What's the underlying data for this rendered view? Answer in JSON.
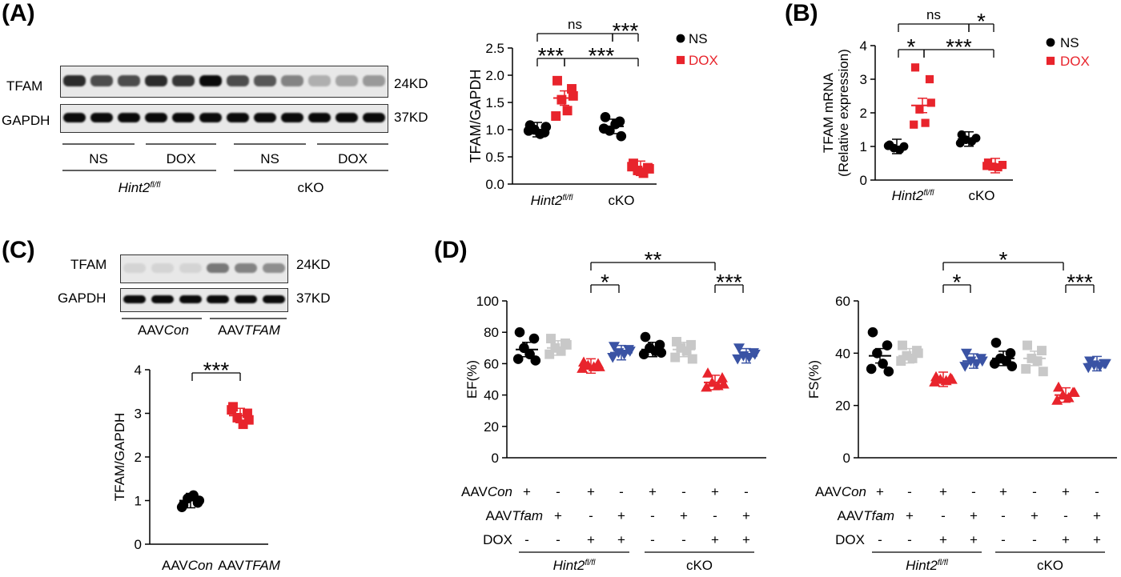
{
  "panels": {
    "A": {
      "label": "(A)",
      "blot": {
        "rows": [
          {
            "name": "TFAM",
            "size": "24KD",
            "intensities": [
              0.85,
              0.7,
              0.7,
              0.85,
              0.8,
              1.0,
              0.7,
              0.65,
              0.45,
              0.25,
              0.3,
              0.35
            ]
          },
          {
            "name": "GAPDH",
            "size": "37KD",
            "intensities": [
              1.0,
              1.0,
              1.0,
              1.0,
              1.0,
              1.0,
              1.0,
              1.0,
              1.0,
              1.0,
              1.0,
              1.0
            ]
          }
        ],
        "groups": [
          "NS",
          "DOX",
          "NS",
          "DOX"
        ],
        "genotypes": [
          "Hint2fl/fl",
          "cKO"
        ]
      }
    },
    "B": {
      "label": "(B)"
    },
    "C": {
      "label": "(C)",
      "blot": {
        "rows": [
          {
            "name": "TFAM",
            "size": "24KD",
            "intensities": [
              0.08,
              0.08,
              0.08,
              0.5,
              0.45,
              0.4
            ]
          },
          {
            "name": "GAPDH",
            "size": "37KD",
            "intensities": [
              1.0,
              1.0,
              1.0,
              1.0,
              1.0,
              1.0
            ]
          }
        ],
        "groups": [
          "AAVCon",
          "AAVTFAM"
        ]
      }
    },
    "D": {
      "label": "(D)",
      "rows": {
        "aavcon_label": "AAVCon",
        "aavtfam_label": "AAVTfam",
        "dox_label": "DOX",
        "aavcon": [
          "+",
          "-",
          "+",
          "-",
          "+",
          "-",
          "+",
          "-"
        ],
        "aavtfam": [
          "-",
          "+",
          "-",
          "+",
          "-",
          "+",
          "-",
          "+"
        ],
        "dox": [
          "-",
          "-",
          "+",
          "+",
          "-",
          "-",
          "+",
          "+"
        ],
        "genotypes": [
          "Hint2fl/fl",
          "cKO"
        ]
      }
    }
  },
  "colors": {
    "ns": "#000000",
    "dox": "#e8242c",
    "gray": "#c8c8c8",
    "blue": "#3a53a4"
  },
  "chart_data": [
    {
      "id": "A-scatter",
      "type": "scatter",
      "ylabel": "TFAM/GAPDH",
      "ylim": [
        0,
        2.5
      ],
      "yticks": [
        "0.0",
        "0.5",
        "1.0",
        "1.5",
        "2.0",
        "2.5"
      ],
      "categories": [
        "Hint2fl/fl",
        "cKO"
      ],
      "legend": [
        "NS",
        "DOX"
      ],
      "legend_position": "top-right",
      "series": [
        {
          "name": "NS",
          "values": [
            [
              1.08,
              0.95,
              1.0,
              0.92,
              0.98,
              1.05
            ],
            [
              1.23,
              1.15,
              0.98,
              1.1,
              1.02,
              0.88
            ]
          ],
          "means": [
            1.0,
            1.06
          ]
        },
        {
          "name": "DOX",
          "values": [
            [
              1.9,
              1.75,
              1.55,
              1.35,
              1.25,
              1.62
            ],
            [
              0.38,
              0.3,
              0.25,
              0.2,
              0.32,
              0.28
            ]
          ],
          "means": [
            1.58,
            0.29
          ]
        }
      ],
      "significance": [
        {
          "text": "ns",
          "level": 2
        },
        {
          "text": "***",
          "level": 2
        },
        {
          "text": "***",
          "level": 1
        },
        {
          "text": "***",
          "level": 1
        }
      ]
    },
    {
      "id": "B-scatter",
      "type": "scatter",
      "ylabel": "TFAM mRNA",
      "ylabel2": "(Relative expression)",
      "ylim": [
        0,
        4
      ],
      "yticks": [
        "0",
        "1",
        "2",
        "3",
        "4"
      ],
      "categories": [
        "Hint2fl/fl",
        "cKO"
      ],
      "legend": [
        "NS",
        "DOX"
      ],
      "legend_position": "top-right",
      "series": [
        {
          "name": "NS",
          "values": [
            [
              1.05,
              1.0,
              0.95,
              0.9,
              1.02
            ],
            [
              1.35,
              1.25,
              1.2,
              1.15,
              1.1
            ]
          ],
          "means": [
            1.0,
            1.22
          ]
        },
        {
          "name": "DOX",
          "values": [
            [
              3.35,
              3.0,
              2.1,
              1.7,
              1.65,
              2.3
            ],
            [
              0.52,
              0.45,
              0.4,
              0.38,
              0.42
            ]
          ],
          "means": [
            2.22,
            0.43
          ]
        }
      ],
      "significance": [
        {
          "text": "ns",
          "level": 2
        },
        {
          "text": "*",
          "level": 2
        },
        {
          "text": "*",
          "level": 1
        },
        {
          "text": "***",
          "level": 1
        }
      ]
    },
    {
      "id": "C-scatter",
      "type": "scatter",
      "ylabel": "TFAM/GAPDH",
      "ylim": [
        0,
        4
      ],
      "yticks": [
        "0",
        "1",
        "2",
        "3",
        "4"
      ],
      "categories": [
        "AAVCon",
        "AAVTFAM"
      ],
      "series": [
        {
          "name": "AAVCon",
          "values": [
            0.9,
            0.95,
            1.05,
            1.12,
            0.85,
            1.0
          ],
          "mean": 1.0
        },
        {
          "name": "AAVTFAM",
          "values": [
            3.15,
            3.0,
            2.9,
            2.75,
            3.08,
            2.85
          ],
          "mean": 2.95
        }
      ],
      "significance": [
        {
          "text": "***"
        }
      ]
    },
    {
      "id": "D-EF",
      "type": "scatter",
      "ylabel": "EF(%)",
      "ylim": [
        0,
        100
      ],
      "yticks": [
        "0",
        "20",
        "40",
        "60",
        "80",
        "100"
      ],
      "series": [
        {
          "name": "Hint2fl/fl AAVCon NS",
          "values": [
            80,
            76,
            70,
            66,
            63,
            62
          ],
          "mean": 69
        },
        {
          "name": "Hint2fl/fl AAVTfam NS",
          "values": [
            76,
            73,
            70,
            68,
            66,
            72
          ],
          "mean": 70
        },
        {
          "name": "Hint2fl/fl AAVCon DOX",
          "values": [
            61,
            60,
            59,
            58,
            57,
            58
          ],
          "mean": 58.5
        },
        {
          "name": "Hint2fl/fl AAVTfam DOX",
          "values": [
            71,
            69,
            67,
            66,
            64,
            68
          ],
          "mean": 67
        },
        {
          "name": "cKO AAVCon NS",
          "values": [
            77,
            72,
            70,
            68,
            66,
            67
          ],
          "mean": 69
        },
        {
          "name": "cKO AAVTfam NS",
          "values": [
            74,
            72,
            70,
            68,
            64,
            63
          ],
          "mean": 69
        },
        {
          "name": "cKO AAVCon DOX",
          "values": [
            54,
            51,
            48,
            46,
            45,
            47
          ],
          "mean": 48
        },
        {
          "name": "cKO AAVTfam DOX",
          "values": [
            70,
            67,
            65,
            64,
            63,
            66
          ],
          "mean": 65
        }
      ],
      "significance": [
        {
          "text": "**",
          "level": 2
        },
        {
          "text": "*",
          "level": 1
        },
        {
          "text": "***",
          "level": 1
        }
      ]
    },
    {
      "id": "D-FS",
      "type": "scatter",
      "ylabel": "FS(%)",
      "ylim": [
        0,
        60
      ],
      "yticks": [
        "0",
        "20",
        "40",
        "60"
      ],
      "series": [
        {
          "name": "Hint2fl/fl AAVCon NS",
          "values": [
            48,
            43,
            40,
            36,
            34,
            33
          ],
          "mean": 39
        },
        {
          "name": "Hint2fl/fl AAVTfam NS",
          "values": [
            43,
            41,
            39,
            38,
            37,
            40
          ],
          "mean": 39
        },
        {
          "name": "Hint2fl/fl AAVCon DOX",
          "values": [
            31,
            30.5,
            30,
            29.5,
            29,
            30
          ],
          "mean": 30
        },
        {
          "name": "Hint2fl/fl AAVTfam DOX",
          "values": [
            40,
            38,
            37,
            36,
            35,
            37
          ],
          "mean": 37
        },
        {
          "name": "cKO AAVCon NS",
          "values": [
            44,
            40,
            38,
            37,
            36,
            35
          ],
          "mean": 38
        },
        {
          "name": "cKO AAVTfam NS",
          "values": [
            43,
            41,
            38,
            37,
            34,
            33
          ],
          "mean": 38
        },
        {
          "name": "cKO AAVCon DOX",
          "values": [
            27,
            25,
            24,
            23,
            22,
            25
          ],
          "mean": 24
        },
        {
          "name": "cKO AAVTfam DOX",
          "values": [
            37,
            36,
            35.5,
            35,
            34.5,
            36
          ],
          "mean": 36
        }
      ],
      "significance": [
        {
          "text": "*",
          "level": 2
        },
        {
          "text": "*",
          "level": 1
        },
        {
          "text": "***",
          "level": 1
        }
      ]
    }
  ]
}
